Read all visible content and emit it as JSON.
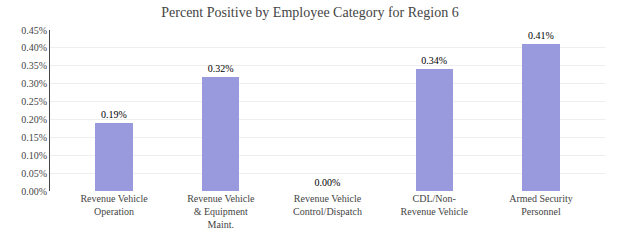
{
  "chart_data": {
    "type": "bar",
    "title": "Percent Positive by Employee Category for Region 6",
    "categories": [
      "Revenue Vehicle\nOperation",
      "Revenue Vehicle\n& Equipment\nMaint.",
      "Revenue Vehicle\nControl/Dispatch",
      "CDL/Non-\nRevenue Vehicle",
      "Armed Security\nPersonnel"
    ],
    "values": [
      0.0019,
      0.0032,
      0.0,
      0.0034,
      0.0041
    ],
    "value_labels": [
      "0.19%",
      "0.32%",
      "0.00%",
      "0.34%",
      "0.41%"
    ],
    "data_labels": true,
    "color": "#9999dd",
    "ylim": [
      0,
      0.0045
    ],
    "yticks": [
      {
        "value": 0.0,
        "label": "0.00%"
      },
      {
        "value": 0.0005,
        "label": "0.05%"
      },
      {
        "value": 0.001,
        "label": "0.10%"
      },
      {
        "value": 0.0015,
        "label": "0.15%"
      },
      {
        "value": 0.002,
        "label": "0.20%"
      },
      {
        "value": 0.0025,
        "label": "0.25%"
      },
      {
        "value": 0.003,
        "label": "0.30%"
      },
      {
        "value": 0.0035,
        "label": "0.35%"
      },
      {
        "value": 0.004,
        "label": "0.40%"
      },
      {
        "value": 0.0045,
        "label": "0.45%"
      }
    ],
    "grid": true
  }
}
